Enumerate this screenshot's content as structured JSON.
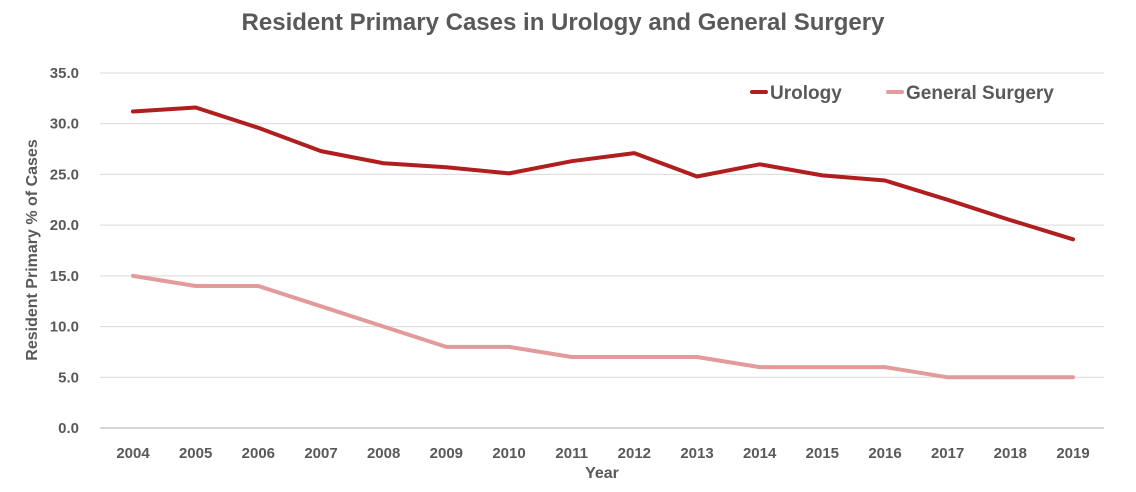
{
  "chart_data": {
    "type": "line",
    "title": "Resident Primary Cases in Urology and General Surgery",
    "xlabel": "Year",
    "ylabel": "Resident Primary % of Cases",
    "x": [
      "2004",
      "2005",
      "2006",
      "2007",
      "2008",
      "2009",
      "2010",
      "2011",
      "2012",
      "2013",
      "2014",
      "2015",
      "2016",
      "2017",
      "2018",
      "2019"
    ],
    "yticks": [
      "0.0",
      "5.0",
      "10.0",
      "15.0",
      "20.0",
      "25.0",
      "30.0",
      "35.0"
    ],
    "ylim": [
      0,
      35
    ],
    "grid": true,
    "legend_position": "top-right",
    "series": [
      {
        "name": "Urology",
        "color": "#b01e1e",
        "values": [
          31.2,
          31.6,
          29.6,
          27.3,
          26.1,
          25.7,
          25.1,
          26.3,
          27.1,
          24.8,
          26.0,
          24.9,
          24.4,
          22.5,
          20.5,
          18.6
        ]
      },
      {
        "name": "General Surgery",
        "color": "#e39a9a",
        "values": [
          15.0,
          14.0,
          14.0,
          12.0,
          10.0,
          8.0,
          8.0,
          7.0,
          7.0,
          7.0,
          6.0,
          6.0,
          6.0,
          5.0,
          5.0,
          5.0
        ]
      }
    ]
  }
}
